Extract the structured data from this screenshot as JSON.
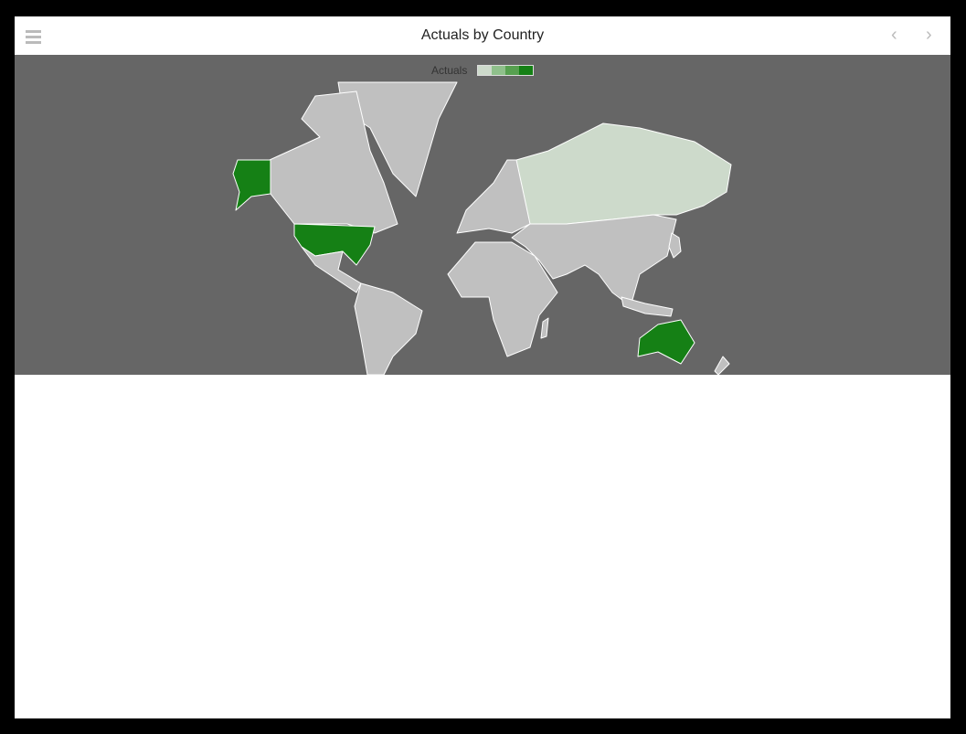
{
  "header": {
    "title": "Actuals by Country",
    "menu_icon": "hamburger-icon",
    "prev_icon": "chevron-left-icon",
    "next_icon": "chevron-right-icon"
  },
  "legend": {
    "label": "Actuals",
    "colors": [
      "#cddacb",
      "#8fc08b",
      "#57a050",
      "#158015"
    ]
  },
  "map": {
    "background": "#666666",
    "no_data_color": "#c0c0c0",
    "highlighted_regions": [
      {
        "name": "United States",
        "level": 4
      },
      {
        "name": "Australia",
        "level": 4
      },
      {
        "name": "Russia",
        "level": 1
      }
    ]
  }
}
